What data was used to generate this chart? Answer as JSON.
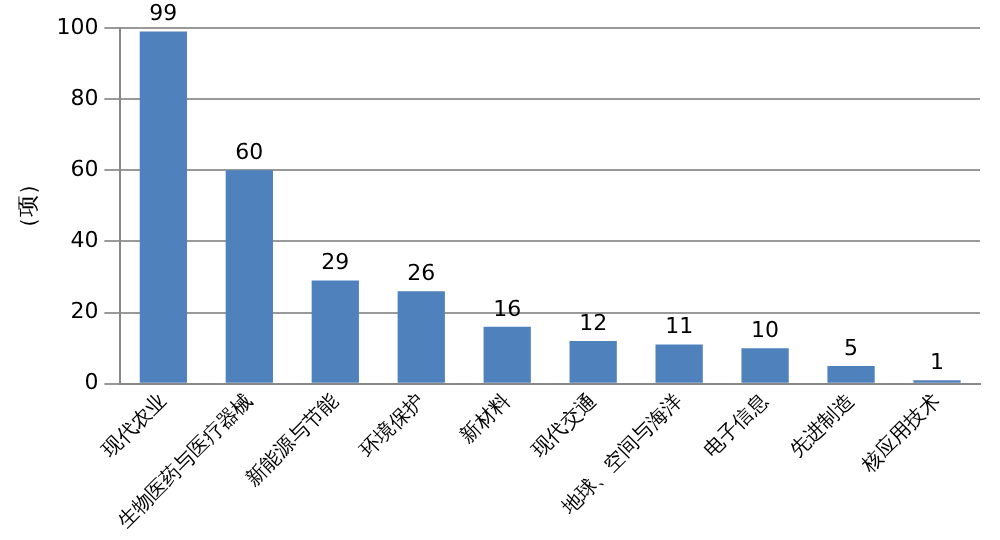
{
  "chart_data": {
    "type": "bar",
    "ylabel": "（项）",
    "categories": [
      "现代农业",
      "生物医药与医疗器械",
      "新能源与节能",
      "环境保护",
      "新材料",
      "现代交通",
      "地球、空间与海洋",
      "电子信息",
      "先进制造",
      "核应用技术"
    ],
    "values": [
      99,
      60,
      29,
      26,
      16,
      12,
      11,
      10,
      5,
      1
    ],
    "color": "#4f81bd",
    "ylim": [
      0,
      100
    ],
    "yticks": [
      0,
      20,
      40,
      60,
      80,
      100
    ],
    "grid": "y",
    "data_labels": true
  }
}
